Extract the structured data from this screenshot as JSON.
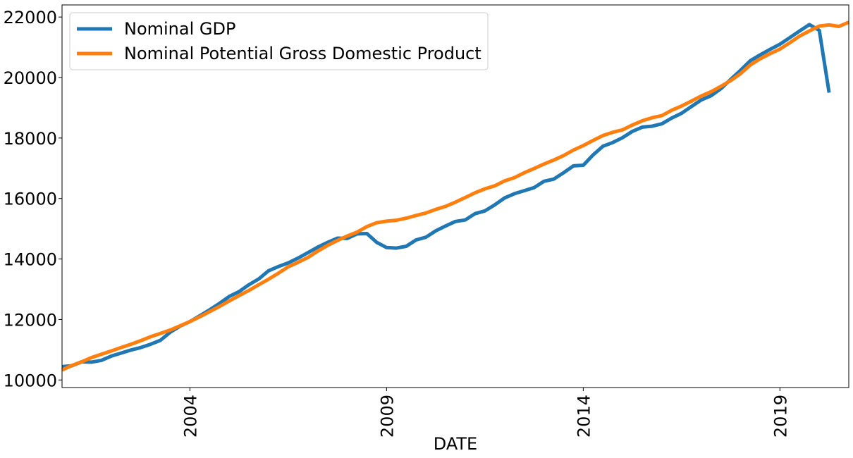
{
  "chart_data": {
    "type": "line",
    "title": "",
    "xlabel": "DATE",
    "ylabel": "",
    "xlim": [
      2000.75,
      2020.75
    ],
    "ylim": [
      9750,
      22400
    ],
    "xticks": [
      {
        "value": 2004,
        "label": "2004"
      },
      {
        "value": 2009,
        "label": "2009"
      },
      {
        "value": 2014,
        "label": "2014"
      },
      {
        "value": 2019,
        "label": "2019"
      }
    ],
    "yticks": [
      {
        "value": 10000,
        "label": "10000"
      },
      {
        "value": 12000,
        "label": "12000"
      },
      {
        "value": 14000,
        "label": "14000"
      },
      {
        "value": 16000,
        "label": "16000"
      },
      {
        "value": 18000,
        "label": "18000"
      },
      {
        "value": 20000,
        "label": "20000"
      },
      {
        "value": 22000,
        "label": "22000"
      }
    ],
    "grid": false,
    "legend_position": "top-left",
    "series": [
      {
        "name": "Nominal GDP",
        "color": "#1f77b4",
        "x": [
          2000.75,
          2001.0,
          2001.25,
          2001.5,
          2001.75,
          2002.0,
          2002.25,
          2002.5,
          2002.75,
          2003.0,
          2003.25,
          2003.5,
          2003.75,
          2004.0,
          2004.25,
          2004.5,
          2004.75,
          2005.0,
          2005.25,
          2005.5,
          2005.75,
          2006.0,
          2006.25,
          2006.5,
          2006.75,
          2007.0,
          2007.25,
          2007.5,
          2007.75,
          2008.0,
          2008.25,
          2008.5,
          2008.75,
          2009.0,
          2009.25,
          2009.5,
          2009.75,
          2010.0,
          2010.25,
          2010.5,
          2010.75,
          2011.0,
          2011.25,
          2011.5,
          2011.75,
          2012.0,
          2012.25,
          2012.5,
          2012.75,
          2013.0,
          2013.25,
          2013.5,
          2013.75,
          2014.0,
          2014.25,
          2014.5,
          2014.75,
          2015.0,
          2015.25,
          2015.5,
          2015.75,
          2016.0,
          2016.25,
          2016.5,
          2016.75,
          2017.0,
          2017.25,
          2017.5,
          2017.75,
          2018.0,
          2018.25,
          2018.5,
          2018.75,
          2019.0,
          2019.25,
          2019.5,
          2019.75,
          2020.0,
          2020.25
        ],
        "values": [
          10440,
          10470,
          10600,
          10590,
          10650,
          10790,
          10890,
          10990,
          11070,
          11180,
          11310,
          11580,
          11780,
          11930,
          12120,
          12320,
          12530,
          12760,
          12920,
          13150,
          13340,
          13610,
          13750,
          13870,
          14030,
          14210,
          14390,
          14550,
          14690,
          14680,
          14830,
          14840,
          14550,
          14380,
          14360,
          14420,
          14630,
          14720,
          14930,
          15090,
          15240,
          15290,
          15500,
          15590,
          15790,
          16020,
          16160,
          16260,
          16360,
          16570,
          16640,
          16850,
          17080,
          17100,
          17440,
          17730,
          17850,
          18010,
          18220,
          18360,
          18390,
          18470,
          18660,
          18820,
          19040,
          19260,
          19400,
          19630,
          19940,
          20240,
          20560,
          20750,
          20930,
          21100,
          21320,
          21540,
          21750,
          21560,
          19500
        ]
      },
      {
        "name": "Nominal Potential Gross Domestic Product",
        "color": "#ff7f0e",
        "x": [
          2000.75,
          2001.0,
          2001.25,
          2001.5,
          2001.75,
          2002.0,
          2002.25,
          2002.5,
          2002.75,
          2003.0,
          2003.25,
          2003.5,
          2003.75,
          2004.0,
          2004.25,
          2004.5,
          2004.75,
          2005.0,
          2005.25,
          2005.5,
          2005.75,
          2006.0,
          2006.25,
          2006.5,
          2006.75,
          2007.0,
          2007.25,
          2007.5,
          2007.75,
          2008.0,
          2008.25,
          2008.5,
          2008.75,
          2009.0,
          2009.25,
          2009.5,
          2009.75,
          2010.0,
          2010.25,
          2010.5,
          2010.75,
          2011.0,
          2011.25,
          2011.5,
          2011.75,
          2012.0,
          2012.25,
          2012.5,
          2012.75,
          2013.0,
          2013.25,
          2013.5,
          2013.75,
          2014.0,
          2014.25,
          2014.5,
          2014.75,
          2015.0,
          2015.25,
          2015.5,
          2015.75,
          2016.0,
          2016.25,
          2016.5,
          2016.75,
          2017.0,
          2017.25,
          2017.5,
          2017.75,
          2018.0,
          2018.25,
          2018.5,
          2018.75,
          2019.0,
          2019.25,
          2019.5,
          2019.75,
          2020.0,
          2020.25,
          2020.5,
          2020.75
        ],
        "values": [
          10330,
          10480,
          10600,
          10740,
          10850,
          10960,
          11070,
          11180,
          11300,
          11430,
          11540,
          11650,
          11790,
          11930,
          12090,
          12260,
          12430,
          12610,
          12790,
          12960,
          13150,
          13330,
          13530,
          13740,
          13890,
          14050,
          14260,
          14450,
          14610,
          14760,
          14890,
          15070,
          15200,
          15250,
          15280,
          15350,
          15440,
          15520,
          15640,
          15740,
          15880,
          16030,
          16190,
          16320,
          16420,
          16580,
          16690,
          16850,
          16990,
          17140,
          17270,
          17420,
          17600,
          17750,
          17920,
          18080,
          18190,
          18270,
          18430,
          18570,
          18670,
          18740,
          18920,
          19060,
          19220,
          19390,
          19530,
          19710,
          19900,
          20130,
          20420,
          20620,
          20790,
          20940,
          21150,
          21370,
          21540,
          21700,
          21740,
          21690,
          21830
        ]
      }
    ]
  }
}
